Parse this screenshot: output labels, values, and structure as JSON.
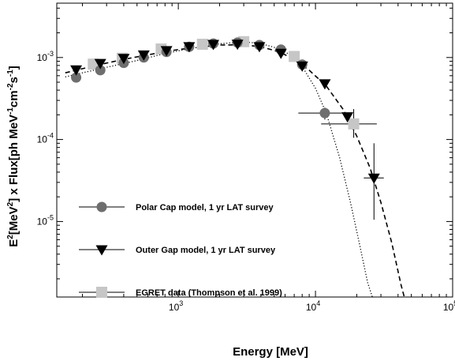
{
  "chart_data": {
    "type": "scatter",
    "xlabel": "Energy [MeV]",
    "ylabel": {
      "parts": [
        {
          "t": "E",
          "s": "n"
        },
        {
          "t": "2",
          "s": "sup"
        },
        {
          "t": "[MeV",
          "s": "n"
        },
        {
          "t": "2",
          "s": "sup"
        },
        {
          "t": "] x Flux[ph MeV",
          "s": "n"
        },
        {
          "t": "-1",
          "s": "sup"
        },
        {
          "t": "cm",
          "s": "n"
        },
        {
          "t": "-2",
          "s": "sup"
        },
        {
          "t": "s",
          "s": "n"
        },
        {
          "t": "-1",
          "s": "sup"
        },
        {
          "t": "]",
          "s": "n"
        }
      ]
    },
    "xscale": "log",
    "yscale": "log",
    "xlim": [
      130,
      100000
    ],
    "ylim": [
      1.2e-06,
      0.0046
    ],
    "grid": false,
    "legend_position": "left",
    "x_ticks": [
      {
        "value": 1000,
        "base": "10",
        "exp": "3"
      },
      {
        "value": 10000,
        "base": "10",
        "exp": "4"
      },
      {
        "value": 100000,
        "base": "10",
        "exp": "5"
      }
    ],
    "y_ticks": [
      {
        "value": 0.001,
        "base": "10",
        "exp": "-3"
      },
      {
        "value": 0.0001,
        "base": "10",
        "exp": "-4"
      },
      {
        "value": 1e-05,
        "base": "10",
        "exp": "-5"
      }
    ],
    "series": [
      {
        "name": "Polar Cap model, 1 yr LAT survey",
        "marker": "circle",
        "color": "#6e6e6e",
        "points": [
          {
            "x": 180,
            "y": 0.00057
          },
          {
            "x": 270,
            "y": 0.0007
          },
          {
            "x": 400,
            "y": 0.00086
          },
          {
            "x": 560,
            "y": 0.001
          },
          {
            "x": 820,
            "y": 0.00117
          },
          {
            "x": 1200,
            "y": 0.00135
          },
          {
            "x": 1800,
            "y": 0.00148
          },
          {
            "x": 2700,
            "y": 0.00152
          },
          {
            "x": 3900,
            "y": 0.00142
          },
          {
            "x": 5600,
            "y": 0.00125
          },
          {
            "x": 8000,
            "y": 0.00082
          },
          {
            "x": 11700,
            "y": 0.00021,
            "xerr": [
              7500,
              17500
            ],
            "yerr": [
              0.000175,
              0.000245
            ]
          }
        ]
      },
      {
        "name": "Outer Gap model, 1 yr LAT survey",
        "marker": "triangle-down",
        "color": "#000000",
        "points": [
          {
            "x": 180,
            "y": 0.00071
          },
          {
            "x": 270,
            "y": 0.00085
          },
          {
            "x": 400,
            "y": 0.00098
          },
          {
            "x": 560,
            "y": 0.00108
          },
          {
            "x": 820,
            "y": 0.00122
          },
          {
            "x": 1200,
            "y": 0.00136
          },
          {
            "x": 1800,
            "y": 0.00145
          },
          {
            "x": 2700,
            "y": 0.00146
          },
          {
            "x": 3900,
            "y": 0.00136
          },
          {
            "x": 5600,
            "y": 0.00113
          },
          {
            "x": 8000,
            "y": 0.00079
          },
          {
            "x": 11700,
            "y": 0.00048
          },
          {
            "x": 17100,
            "y": 0.00019
          },
          {
            "x": 26700,
            "y": 3.4e-05,
            "xerr": [
              22500,
              31500
            ],
            "yerr": [
              1.05e-05,
              9e-05
            ]
          }
        ]
      },
      {
        "name": "EGRET data (Thompson et al. 1999)",
        "marker": "square",
        "color": "#c6c6c6",
        "points": [
          {
            "x": 240,
            "y": 0.00083
          },
          {
            "x": 390,
            "y": 0.00098
          },
          {
            "x": 750,
            "y": 0.00127
          },
          {
            "x": 1500,
            "y": 0.00145
          },
          {
            "x": 3000,
            "y": 0.00156
          },
          {
            "x": 7000,
            "y": 0.00103
          },
          {
            "x": 19000,
            "y": 0.000155,
            "xerr": [
              11000,
              28000
            ],
            "yerr": [
              0.000105,
              0.000235
            ]
          }
        ]
      }
    ],
    "curves": [
      {
        "style": "dotted",
        "points": [
          [
            150,
            0.00058
          ],
          [
            200,
            0.00065
          ],
          [
            300,
            0.00076
          ],
          [
            500,
            0.00092
          ],
          [
            800,
            0.00112
          ],
          [
            1200,
            0.00128
          ],
          [
            2000,
            0.00147
          ],
          [
            3000,
            0.00155
          ],
          [
            4000,
            0.00148
          ],
          [
            5000,
            0.00133
          ],
          [
            6000,
            0.00118
          ],
          [
            7000,
            0.00098
          ],
          [
            8000,
            0.00078
          ],
          [
            10000,
            0.00042
          ],
          [
            12000,
            0.00021
          ],
          [
            15000,
            6e-05
          ],
          [
            18000,
            1.7e-05
          ],
          [
            21000,
            5.2e-06
          ],
          [
            24000,
            1.8e-06
          ],
          [
            26000,
            1.2e-06
          ]
        ]
      },
      {
        "style": "dashed",
        "points": [
          [
            150,
            0.00065
          ],
          [
            250,
            0.0008
          ],
          [
            400,
            0.00095
          ],
          [
            700,
            0.00113
          ],
          [
            1000,
            0.00125
          ],
          [
            2000,
            0.00142
          ],
          [
            3000,
            0.00143
          ],
          [
            4000,
            0.00135
          ],
          [
            5000,
            0.00122
          ],
          [
            6000,
            0.00108
          ],
          [
            7000,
            0.00094
          ],
          [
            9000,
            0.0007
          ],
          [
            12000,
            0.00045
          ],
          [
            16000,
            0.00023
          ],
          [
            20000,
            0.00011
          ],
          [
            25000,
            4.5e-05
          ],
          [
            30000,
            1.7e-05
          ],
          [
            36000,
            5.5e-06
          ],
          [
            42000,
            1.7e-06
          ],
          [
            45000,
            1.1e-06
          ]
        ]
      }
    ]
  }
}
